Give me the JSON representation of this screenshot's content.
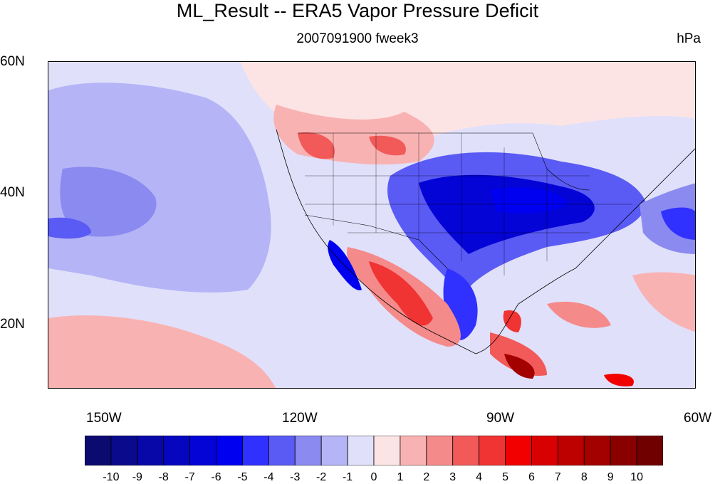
{
  "figure": {
    "title": "ML_Result -- ERA5 Vapor Pressure Deficit",
    "subtitle": "2007091900 fweek3",
    "units": "hPa"
  },
  "axes": {
    "lat_labels": [
      "60N",
      "40N",
      "20N"
    ],
    "lon_labels": [
      "150W",
      "120W",
      "90W",
      "60W"
    ],
    "lat_range": [
      10,
      60
    ],
    "lon_range": [
      -160,
      -60
    ]
  },
  "colorbar": {
    "labels": [
      "-10",
      "-9",
      "-8",
      "-7",
      "-6",
      "-5",
      "-4",
      "-3",
      "-2",
      "-1",
      "0",
      "1",
      "2",
      "3",
      "4",
      "5",
      "6",
      "7",
      "8",
      "9",
      "10"
    ],
    "colors": [
      "#0b0a6e",
      "#0a0a8c",
      "#0808a8",
      "#0606c0",
      "#0404d6",
      "#0000f0",
      "#3030ff",
      "#5a5af5",
      "#8a8af0",
      "#b4b4f7",
      "#e0e0fb",
      "#fde4e4",
      "#f9b2b2",
      "#f58a8a",
      "#f25a5a",
      "#f03333",
      "#f20000",
      "#d80000",
      "#bd0000",
      "#a30000",
      "#8a0000",
      "#700000"
    ]
  }
}
